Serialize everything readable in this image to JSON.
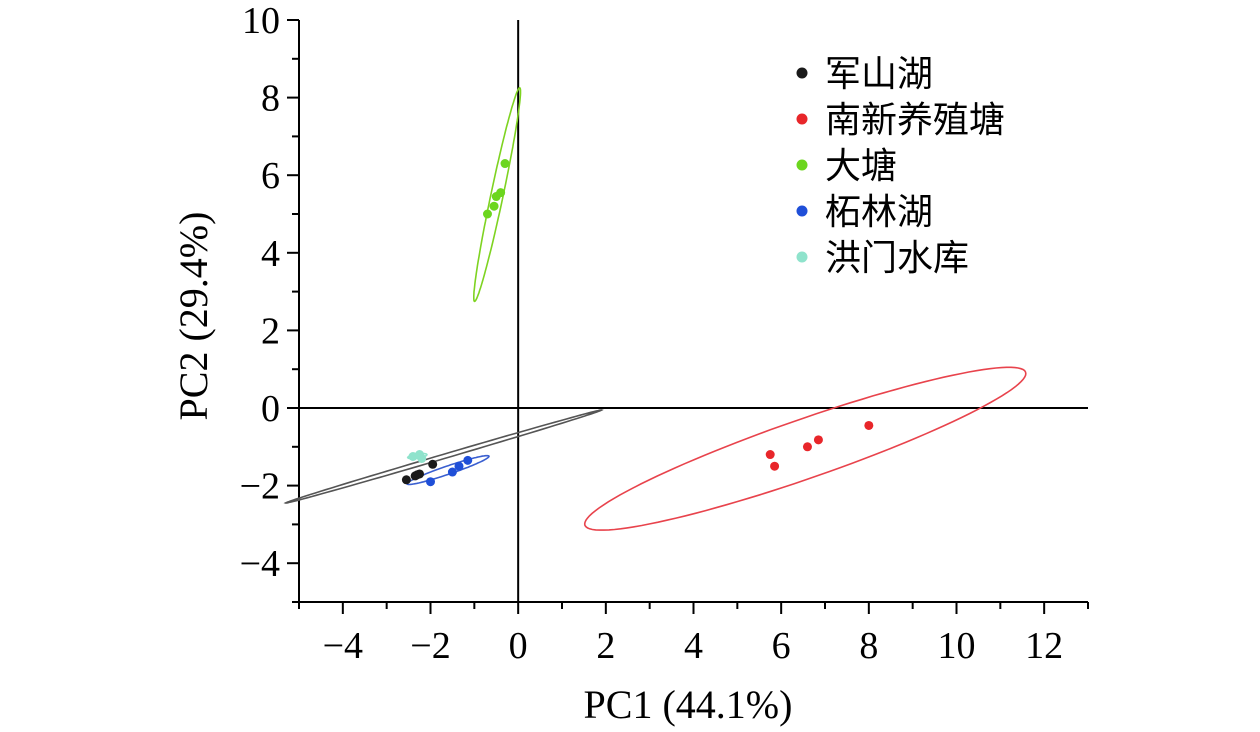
{
  "chart_data": {
    "type": "scatter",
    "xlabel": "PC1 (44.1%)",
    "ylabel": "PC2 (29.4%)",
    "xlim": [
      -5,
      13
    ],
    "ylim": [
      -5,
      10
    ],
    "xticks": [
      -4,
      -2,
      0,
      2,
      4,
      6,
      8,
      10,
      12
    ],
    "yticks": [
      -4,
      -2,
      0,
      2,
      4,
      6,
      8,
      10
    ],
    "xtick_labels": [
      "−4",
      "−2",
      "0",
      "2",
      "4",
      "6",
      "8",
      "10",
      "12"
    ],
    "ytick_labels": [
      "−4",
      "−2",
      "0",
      "2",
      "4",
      "6",
      "8",
      "10"
    ],
    "legend_position": "top-right",
    "series": [
      {
        "name": "军山湖",
        "color": "#1a1a1a",
        "points": [
          [
            -2.55,
            -1.85
          ],
          [
            -2.35,
            -1.75
          ],
          [
            -2.25,
            -1.7
          ],
          [
            -1.95,
            -1.45
          ],
          [
            -2.3,
            -1.72
          ]
        ],
        "ellipse": {
          "cx": -1.7,
          "cy": -1.25,
          "rx": 3.8,
          "ry": 0.055,
          "angle_deg": 18.4,
          "color": "#555555"
        }
      },
      {
        "name": "南新养殖塘",
        "color": "#e8262a",
        "points": [
          [
            5.75,
            -1.2
          ],
          [
            5.85,
            -1.5
          ],
          [
            6.6,
            -1.0
          ],
          [
            6.85,
            -0.82
          ],
          [
            8.0,
            -0.45
          ]
        ],
        "ellipse": {
          "cx": 6.55,
          "cy": -1.05,
          "rx": 5.4,
          "ry": 0.75,
          "angle_deg": 21.5,
          "color": "#e8434c"
        }
      },
      {
        "name": "大塘",
        "color": "#6cd61e",
        "points": [
          [
            -0.3,
            6.3
          ],
          [
            -0.4,
            5.55
          ],
          [
            -0.5,
            5.45
          ],
          [
            -0.55,
            5.2
          ],
          [
            -0.7,
            5.0
          ]
        ],
        "ellipse": {
          "cx": -0.48,
          "cy": 5.5,
          "rx": 2.8,
          "ry": 0.14,
          "angle_deg": 79.4,
          "color": "#7ed321"
        }
      },
      {
        "name": "柘林湖",
        "color": "#1f4fd8",
        "points": [
          [
            -2.0,
            -1.9
          ],
          [
            -1.5,
            -1.65
          ],
          [
            -1.35,
            -1.5
          ],
          [
            -1.15,
            -1.35
          ]
        ],
        "ellipse": {
          "cx": -1.6,
          "cy": -1.6,
          "rx": 1.0,
          "ry": 0.105,
          "angle_deg": 21.0,
          "color": "#3a5fd0"
        }
      },
      {
        "name": "洪门水库",
        "color": "#8fe3cc",
        "points": [
          [
            -2.4,
            -1.25
          ],
          [
            -2.25,
            -1.2
          ],
          [
            -2.2,
            -1.3
          ]
        ],
        "ellipse": {
          "cx": -2.3,
          "cy": -1.24,
          "rx": 0.22,
          "ry": 0.055,
          "angle_deg": 10.0,
          "color": "#8fe3cc"
        }
      }
    ]
  }
}
